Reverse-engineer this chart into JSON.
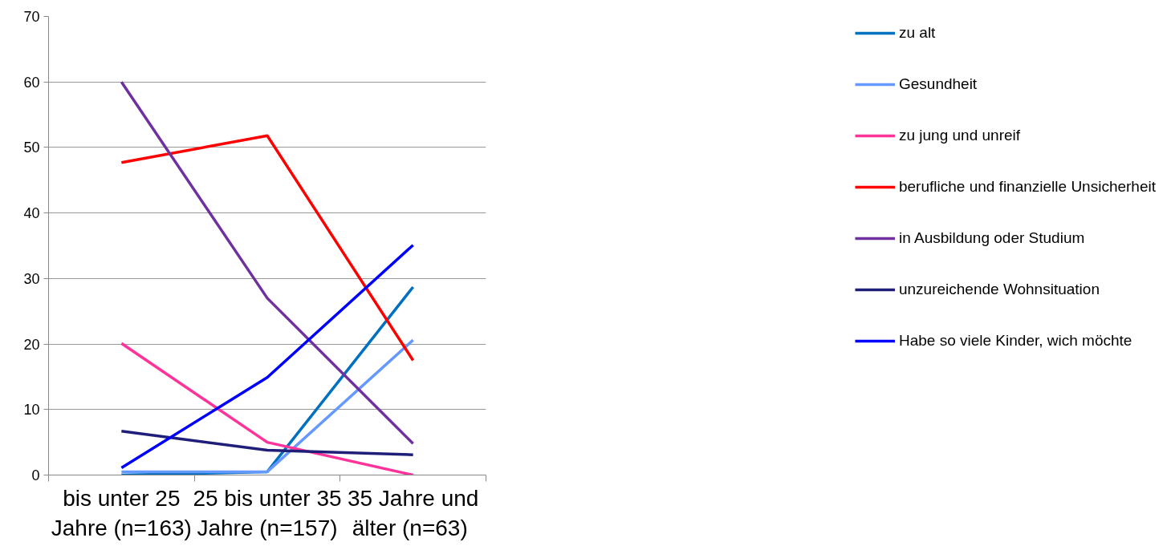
{
  "chart_data": {
    "type": "line",
    "categories": [
      "bis unter 25\nJahre (n=163)",
      "25 bis unter 35\nJahre (n=157)",
      "35 Jahre und\nälter  (n=63)"
    ],
    "ylim": [
      0,
      70
    ],
    "yticks": [
      0,
      10,
      20,
      30,
      40,
      50,
      60,
      70
    ],
    "grid": "y",
    "legend": "right",
    "marker": "none",
    "line_style": "solid",
    "series": [
      {
        "name": "zu alt",
        "color": "#0070c0",
        "values": [
          0,
          0.5,
          28.7
        ]
      },
      {
        "name": "Gesundheit",
        "color": "#6699ff",
        "values": [
          0.5,
          0.5,
          20.6
        ]
      },
      {
        "name": "zu jung und unreif",
        "color": "#ff3399",
        "values": [
          20.1,
          5.0,
          0
        ]
      },
      {
        "name": "berufliche und finanzielle Unsicherheit",
        "color": "#ff0000",
        "values": [
          47.7,
          51.8,
          17.5
        ]
      },
      {
        "name": "in Ausbildung oder Studium",
        "color": "#7030a0",
        "values": [
          60,
          27,
          4.8
        ]
      },
      {
        "name": "unzureichende Wohnsituation",
        "color": "#1f1f7a",
        "values": [
          6.7,
          3.8,
          3.1
        ]
      },
      {
        "name": "Habe so viele Kinder, wich möchte",
        "color": "#0000ff",
        "values": [
          1.1,
          14.9,
          35.1
        ]
      }
    ]
  }
}
